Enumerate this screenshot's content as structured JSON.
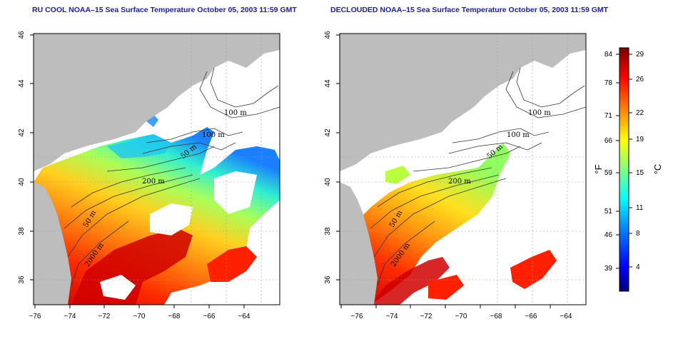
{
  "panels": [
    {
      "title": "RU COOL NOAA–15 Sea Surface Temperature October 05, 2003 11:59 GMT",
      "contour_labels": [
        "100 m",
        "100 m",
        "50 m",
        "200 m",
        "50 m",
        "2000 m"
      ]
    },
    {
      "title": "DECLOUDED NOAA–15 Sea Surface Temperature October 05, 2003 11:59 GMT",
      "contour_labels": [
        "100 m",
        "100 m",
        "50 m",
        "200 m",
        "50 m",
        "2000 m"
      ]
    }
  ],
  "axes": {
    "lon_ticks": [
      "−76",
      "−74",
      "−72",
      "−70",
      "−68",
      "−66",
      "−64"
    ],
    "lat_ticks": [
      "36",
      "38",
      "40",
      "42",
      "44",
      "46"
    ]
  },
  "colorbar": {
    "fahrenheit_label": "°F",
    "celsius_label": "°C",
    "fahrenheit_ticks": [
      "84",
      "78",
      "71",
      "66",
      "59",
      "51",
      "46",
      "39"
    ],
    "celsius_ticks": [
      "29",
      "26",
      "22",
      "19",
      "15",
      "11",
      "8",
      "4"
    ],
    "colors": [
      "#00007f",
      "#0000ff",
      "#007fff",
      "#00ffff",
      "#7fff7f",
      "#ffff00",
      "#ff7f00",
      "#ff0000",
      "#7f0000"
    ]
  },
  "colors": {
    "land": "#bdbdbd",
    "grid": "#999999",
    "title": "#1c1ca8"
  }
}
